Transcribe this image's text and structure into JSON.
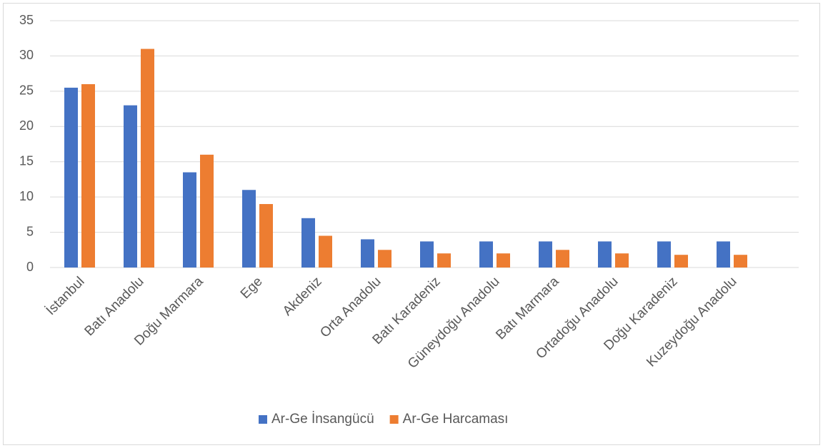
{
  "chart_data": {
    "type": "bar",
    "categories": [
      "İstanbul",
      "Batı Anadolu",
      "Doğu Marmara",
      "Ege",
      "Akdeniz",
      "Orta Anadolu",
      "Batı Karadeniz",
      "Güneydoğu Anadolu",
      "Batı Marmara",
      "Ortadoğu Anadolu",
      "Doğu Karadeniz",
      "Kuzeydoğu Anadolu"
    ],
    "series": [
      {
        "name": "Ar-Ge İnsangücü",
        "color": "#4472c4",
        "values": [
          25.5,
          23,
          13.5,
          11,
          7,
          4,
          3.7,
          3.7,
          3.7,
          3.7,
          3.7,
          3.7
        ]
      },
      {
        "name": "Ar-Ge Harcaması",
        "color": "#ed7d31",
        "values": [
          26,
          31,
          16,
          9,
          4.5,
          2.5,
          2,
          2,
          2.5,
          2,
          1.8,
          1.8
        ]
      }
    ],
    "ylim": [
      0,
      35
    ],
    "yticks": [
      0,
      5,
      10,
      15,
      20,
      25,
      30,
      35
    ],
    "grid": true,
    "legend": "bottom"
  }
}
